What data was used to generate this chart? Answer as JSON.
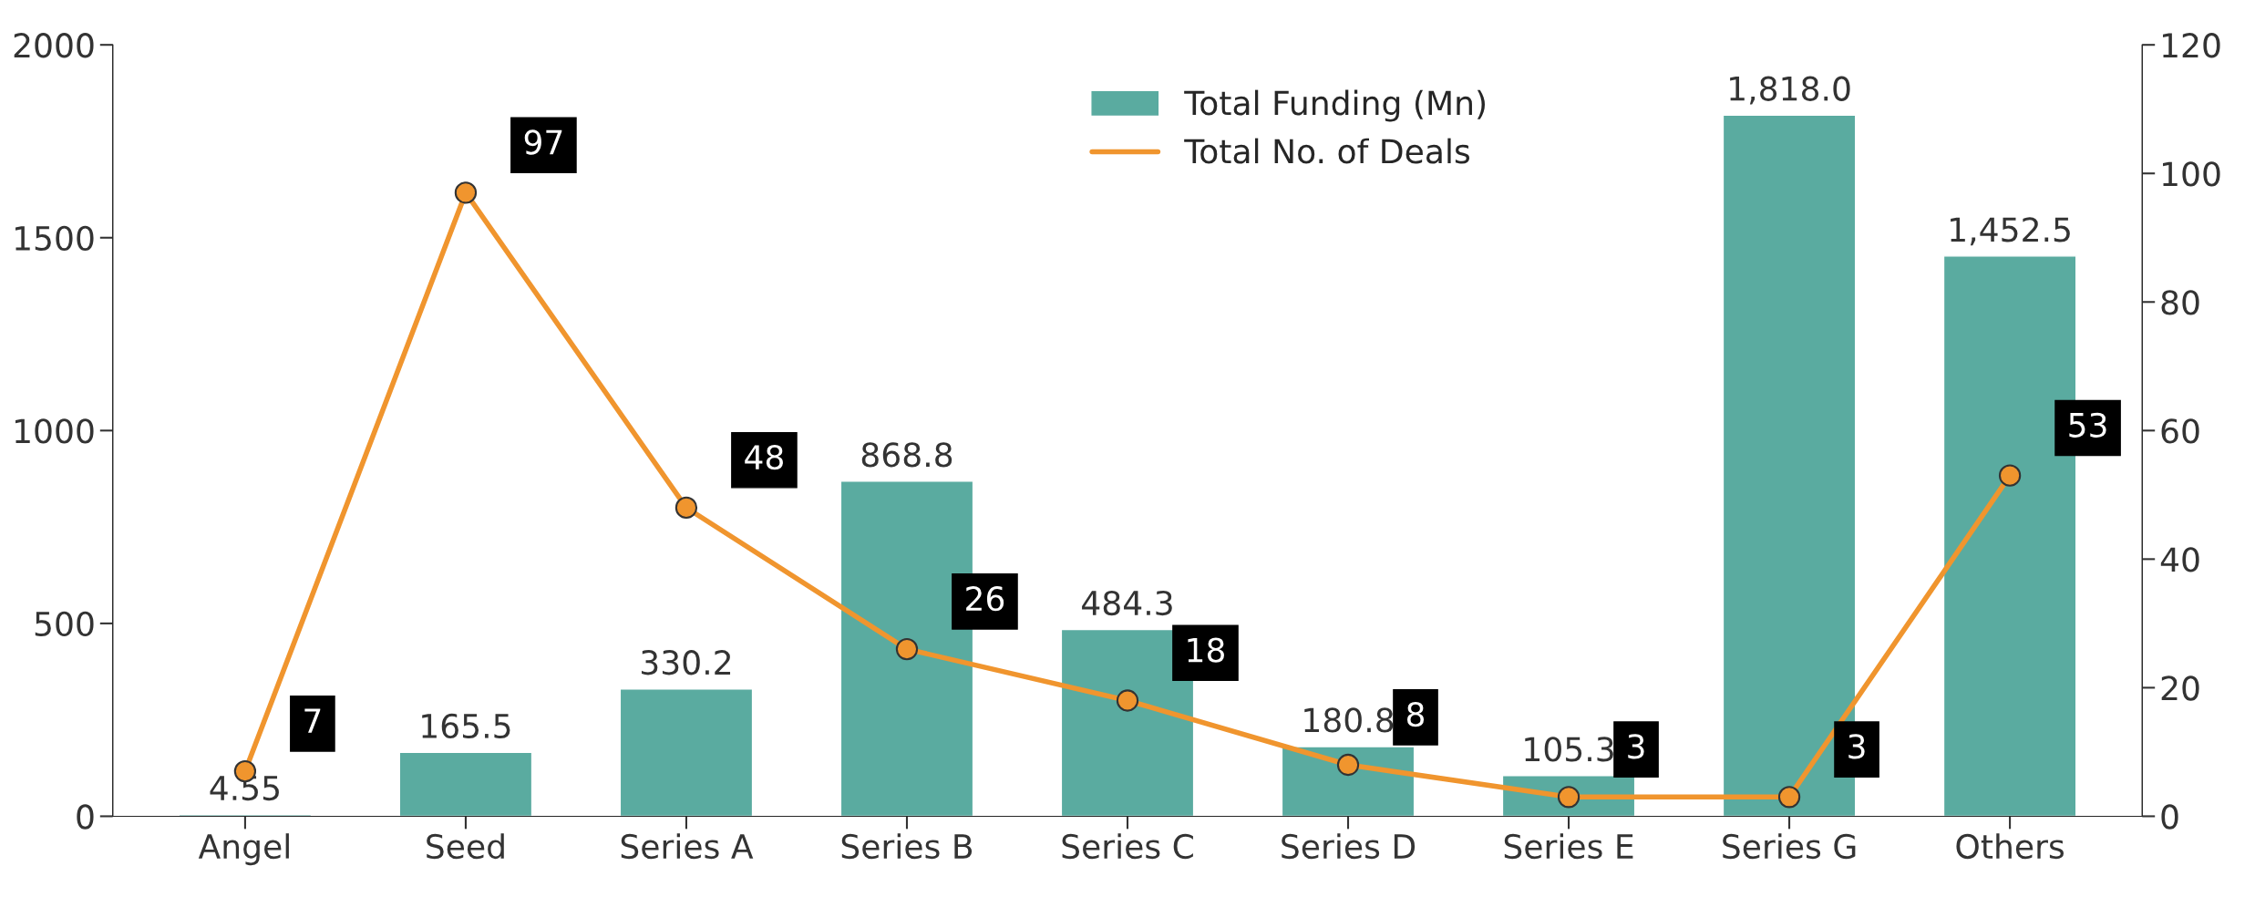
{
  "chart_data": {
    "type": "bar",
    "categories": [
      "Angel",
      "Seed",
      "Series A",
      "Series B",
      "Series C",
      "Series D",
      "Series E",
      "Series G",
      "Others"
    ],
    "series": [
      {
        "name": "Total Funding (Mn)",
        "color": "#5aaba0",
        "values": [
          4.55,
          165.5,
          330.2,
          868.8,
          484.3,
          180.8,
          105.3,
          1818.0,
          1452.5
        ],
        "value_labels": [
          "4.55",
          "165.5",
          "330.2",
          "868.8",
          "484.3",
          "180.8",
          "105.3",
          "1,818.0",
          "1,452.5"
        ]
      },
      {
        "name": "Total No. of Deals",
        "type": "line",
        "axis": "y2",
        "color": "#f0952e",
        "marker": "circle",
        "values": [
          7,
          97,
          48,
          26,
          18,
          8,
          3,
          3,
          53
        ],
        "value_labels": [
          "7",
          "97",
          "48",
          "26",
          "18",
          "8",
          "3",
          "3",
          "53"
        ]
      }
    ],
    "ylim": [
      0,
      2000
    ],
    "yticks": [
      0,
      500,
      1000,
      1500,
      2000
    ],
    "y2lim": [
      0,
      120
    ],
    "y2ticks": [
      0,
      20,
      40,
      60,
      80,
      100,
      120
    ],
    "grid": false,
    "legend": "top"
  }
}
